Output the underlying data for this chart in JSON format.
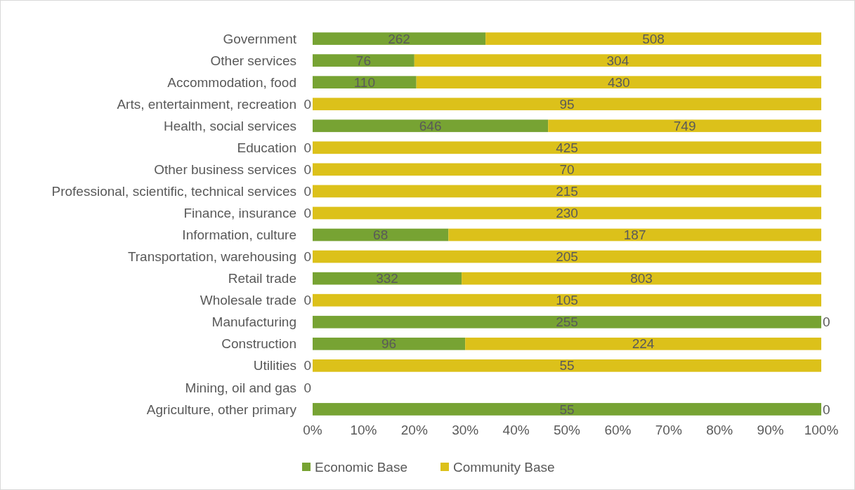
{
  "chart_data": {
    "type": "bar",
    "orientation": "horizontal",
    "stacked": true,
    "categories": [
      "Government",
      "Other services",
      "Accommodation, food",
      "Arts, entertainment, recreation",
      "Health, social services",
      "Education",
      "Other business services",
      "Professional, scientific, technical services",
      "Finance, insurance",
      "Information, culture",
      "Transportation, warehousing",
      "Retail trade",
      "Wholesale trade",
      "Manufacturing",
      "Construction",
      "Utilities",
      "Mining, oil and gas",
      "Agriculture, other primary"
    ],
    "series": [
      {
        "name": "Economic Base",
        "color": "#77a333",
        "values": [
          34.0,
          20.0,
          20.4,
          0,
          46.3,
          0,
          0,
          0,
          0,
          26.7,
          0,
          29.3,
          0,
          100,
          30.0,
          0,
          0,
          100
        ]
      },
      {
        "name": "Community Base",
        "color": "#dcc11a",
        "values": [
          66.0,
          80.0,
          79.6,
          100,
          53.7,
          100,
          100,
          100,
          100,
          73.3,
          100,
          70.7,
          100,
          0,
          70.0,
          100,
          0,
          0
        ]
      }
    ],
    "xlim": [
      0,
      100
    ],
    "xticks": [
      {
        "value": 0,
        "label": "0%"
      },
      {
        "value": 10,
        "label": "10%"
      },
      {
        "value": 20,
        "label": "20%"
      },
      {
        "value": 30,
        "label": "30%"
      },
      {
        "value": 40,
        "label": "40%"
      },
      {
        "value": 50,
        "label": "50%"
      },
      {
        "value": 60,
        "label": "60%"
      },
      {
        "value": 70,
        "label": "70%"
      },
      {
        "value": 80,
        "label": "80%"
      },
      {
        "value": 90,
        "label": "90%"
      },
      {
        "value": 100,
        "label": "100%"
      }
    ],
    "legend": "bottom",
    "annotations": [
      {
        "text": "262",
        "x": 17.0,
        "y": "Government"
      },
      {
        "text": "508",
        "x": 67.0,
        "y": "Government"
      },
      {
        "text": "76",
        "x": 10.0,
        "y": "Other services"
      },
      {
        "text": "304",
        "x": 60.0,
        "y": "Other services"
      },
      {
        "text": "110",
        "x": 10.2,
        "y": "Accommodation, food"
      },
      {
        "text": "430",
        "x": 60.2,
        "y": "Accommodation, food"
      },
      {
        "text": "0",
        "x": 0,
        "y": "Arts, entertainment, recreation"
      },
      {
        "text": "95",
        "x": 50,
        "y": "Arts, entertainment, recreation"
      },
      {
        "text": "646",
        "x": 23.15,
        "y": "Health, social services"
      },
      {
        "text": "749",
        "x": 73.15,
        "y": "Health, social services"
      },
      {
        "text": "0",
        "x": 0,
        "y": "Education"
      },
      {
        "text": "425",
        "x": 50,
        "y": "Education"
      },
      {
        "text": "0",
        "x": 0,
        "y": "Other business services"
      },
      {
        "text": "70",
        "x": 50,
        "y": "Other business services"
      },
      {
        "text": "0",
        "x": 0,
        "y": "Professional, scientific, technical services"
      },
      {
        "text": "215",
        "x": 50,
        "y": "Professional, scientific, technical services"
      },
      {
        "text": "0",
        "x": 0,
        "y": "Finance, insurance"
      },
      {
        "text": "230",
        "x": 50,
        "y": "Finance, insurance"
      },
      {
        "text": "68",
        "x": 13.35,
        "y": "Information, culture"
      },
      {
        "text": "187",
        "x": 63.35,
        "y": "Information, culture"
      },
      {
        "text": "0",
        "x": 0,
        "y": "Transportation, warehousing"
      },
      {
        "text": "205",
        "x": 50,
        "y": "Transportation, warehousing"
      },
      {
        "text": "332",
        "x": 14.65,
        "y": "Retail trade"
      },
      {
        "text": "803",
        "x": 64.65,
        "y": "Retail trade"
      },
      {
        "text": "0",
        "x": 0,
        "y": "Wholesale trade"
      },
      {
        "text": "105",
        "x": 50,
        "y": "Wholesale trade"
      },
      {
        "text": "255",
        "x": 50,
        "y": "Manufacturing"
      },
      {
        "text": "0",
        "x": 100,
        "y": "Manufacturing"
      },
      {
        "text": "96",
        "x": 15.0,
        "y": "Construction"
      },
      {
        "text": "224",
        "x": 65.0,
        "y": "Construction"
      },
      {
        "text": "0",
        "x": 0,
        "y": "Utilities"
      },
      {
        "text": "55",
        "x": 50,
        "y": "Utilities"
      },
      {
        "text": "0",
        "x": 0,
        "y": "Mining, oil and gas"
      },
      {
        "text": "55",
        "x": 50,
        "y": "Agriculture, other primary"
      },
      {
        "text": "0",
        "x": 100,
        "y": "Agriculture, other primary"
      }
    ]
  }
}
